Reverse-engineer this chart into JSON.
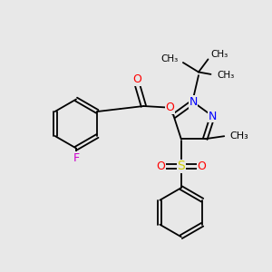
{
  "background_color": "#e8e8e8",
  "bond_color": "#000000",
  "nitrogen_color": "#0000ff",
  "oxygen_color": "#ff0000",
  "fluorine_color": "#cc00cc",
  "sulfur_color": "#cccc00",
  "figsize": [
    3.0,
    3.0
  ],
  "dpi": 100,
  "xlim": [
    0.0,
    10.0
  ],
  "ylim": [
    0.0,
    10.0
  ]
}
